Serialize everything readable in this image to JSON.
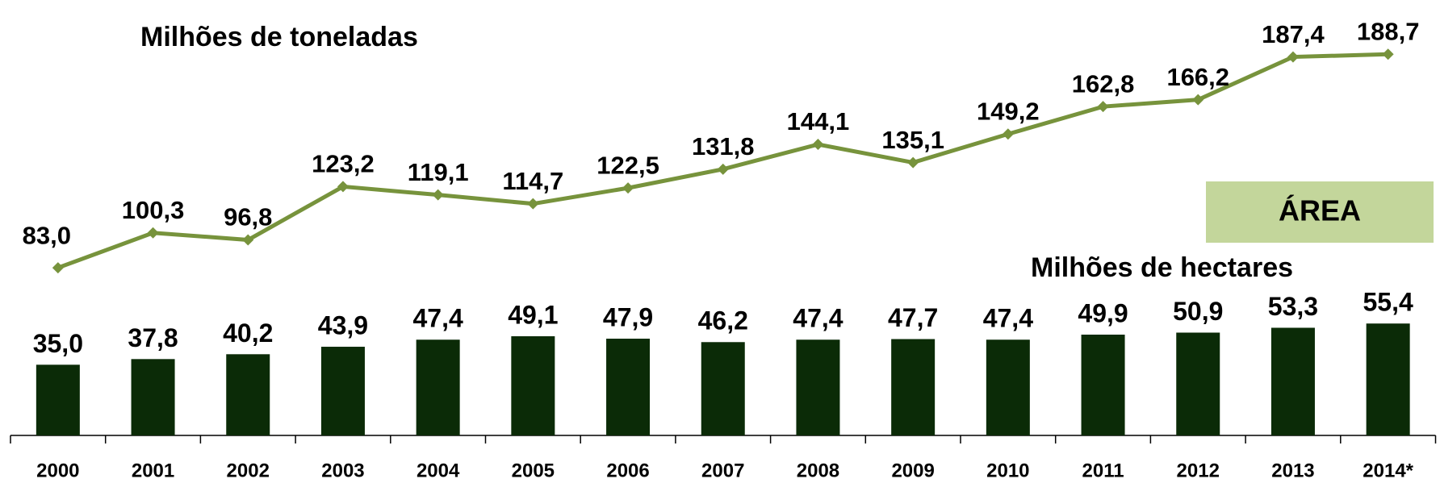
{
  "chart_data": {
    "type": "line_bar",
    "title": "Milhões de toneladas",
    "subtitle": "Milhões de hectares",
    "annotation": "ÁREA",
    "categories": [
      "2000",
      "2001",
      "2002",
      "2003",
      "2004",
      "2005",
      "2006",
      "2007",
      "2008",
      "2009",
      "2010",
      "2011",
      "2012",
      "2013",
      "2014*"
    ],
    "ylim": [
      0,
      200
    ],
    "series": [
      {
        "name": "Milhões de toneladas",
        "type": "line",
        "color": "#77933c",
        "values": [
          83.0,
          100.3,
          96.8,
          123.2,
          119.1,
          114.7,
          122.5,
          131.8,
          144.1,
          135.1,
          149.2,
          162.8,
          166.2,
          187.4,
          188.7
        ],
        "value_labels": [
          "83,0",
          "100,3",
          "96,8",
          "123,2",
          "119,1",
          "114,7",
          "122,5",
          "131,8",
          "144,1",
          "135,1",
          "149,2",
          "162,8",
          "166,2",
          "187,4",
          "188,7"
        ]
      },
      {
        "name": "Milhões de hectares",
        "type": "bar",
        "color": "#0b2b07",
        "values": [
          35.0,
          37.8,
          40.2,
          43.9,
          47.4,
          49.1,
          47.9,
          46.2,
          47.4,
          47.7,
          47.4,
          49.9,
          50.9,
          53.3,
          55.4
        ],
        "value_labels": [
          "35,0",
          "37,8",
          "40,2",
          "43,9",
          "47,4",
          "49,1",
          "47,9",
          "46,2",
          "47,4",
          "47,7",
          "47,4",
          "49,9",
          "50,9",
          "53,3",
          "55,4"
        ]
      }
    ]
  }
}
